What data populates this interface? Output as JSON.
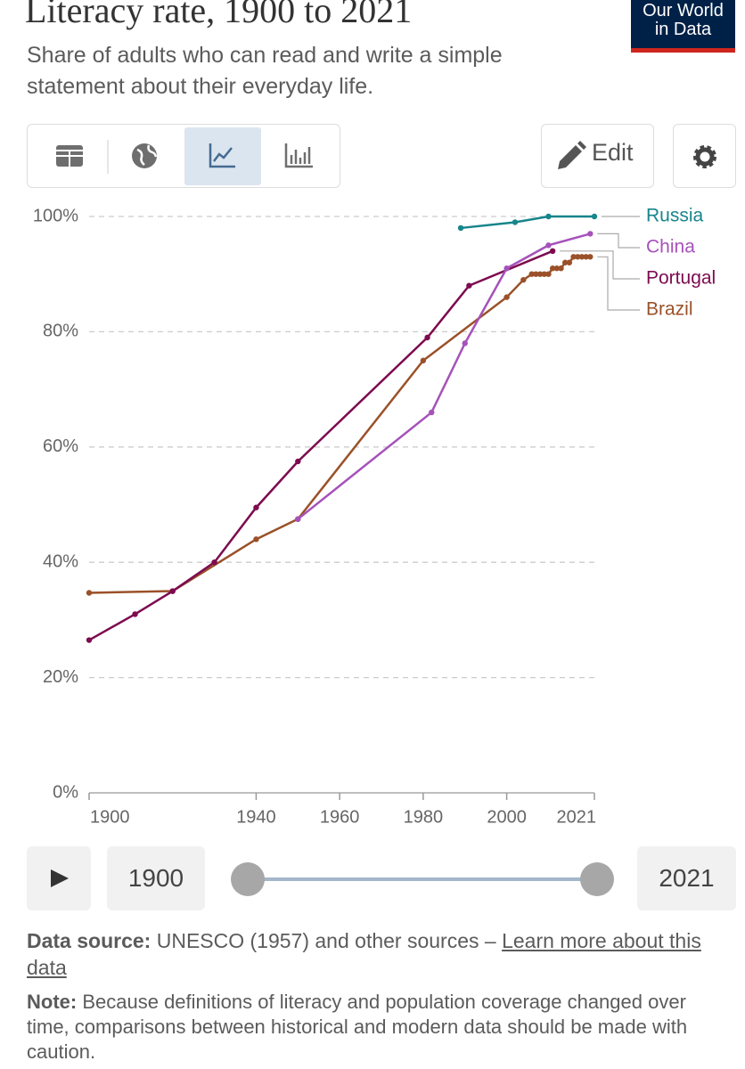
{
  "header": {
    "title": "Literacy rate, 1900 to 2021",
    "subtitle": "Share of adults who can read and write a simple statement about their everyday life.",
    "logo": [
      "Our World",
      "in Data"
    ]
  },
  "toolbar": {
    "edit": "Edit"
  },
  "chart_data": {
    "type": "line",
    "xlim": [
      1900,
      2021
    ],
    "xticks": [
      1900,
      1940,
      1960,
      1980,
      2000,
      2021
    ],
    "ylim": [
      0,
      100
    ],
    "yticks": [
      {
        "value": 0,
        "label": "0%"
      },
      {
        "value": 20,
        "label": "20%"
      },
      {
        "value": 40,
        "label": "40%"
      },
      {
        "value": 60,
        "label": "60%"
      },
      {
        "value": 80,
        "label": "80%"
      },
      {
        "value": 100,
        "label": "100%"
      }
    ],
    "grid": true,
    "series": [
      {
        "name": "Russia",
        "color": "#17858b",
        "x": [
          1989,
          2002,
          2010,
          2021
        ],
        "values": [
          98,
          99,
          100,
          100
        ]
      },
      {
        "name": "China",
        "color": "#a652ba",
        "x": [
          1950,
          1982,
          1990,
          2000,
          2010,
          2020
        ],
        "values": [
          47.5,
          66,
          78,
          91,
          95,
          97
        ]
      },
      {
        "name": "Portugal",
        "color": "#7d0b4f",
        "x": [
          1900,
          1911,
          1920,
          1930,
          1940,
          1950,
          1981,
          1991,
          2011
        ],
        "values": [
          26.5,
          31,
          35,
          40,
          49.5,
          57.5,
          79,
          88,
          94
        ]
      },
      {
        "name": "Brazil",
        "color": "#9a5129",
        "x": [
          1900,
          1920,
          1940,
          1950,
          1980,
          2000,
          2004,
          2006,
          2007,
          2008,
          2009,
          2010,
          2011,
          2012,
          2013,
          2014,
          2015,
          2016,
          2017,
          2018,
          2019,
          2020
        ],
        "values": [
          34.7,
          35,
          44,
          47.5,
          75,
          86,
          89,
          90,
          90,
          90,
          90,
          90,
          91,
          91,
          91,
          92,
          92,
          93,
          93,
          93,
          93,
          93
        ]
      }
    ]
  },
  "timeline": {
    "start": "1900",
    "end": "2021"
  },
  "footer": {
    "source_label": "Data source:",
    "source_text": "UNESCO (1957) and other sources –",
    "link": "Learn more about this data",
    "note_label": "Note:",
    "note_text": "Because definitions of literacy and population coverage changed over time, comparisons between historical and modern data should be made with caution."
  }
}
